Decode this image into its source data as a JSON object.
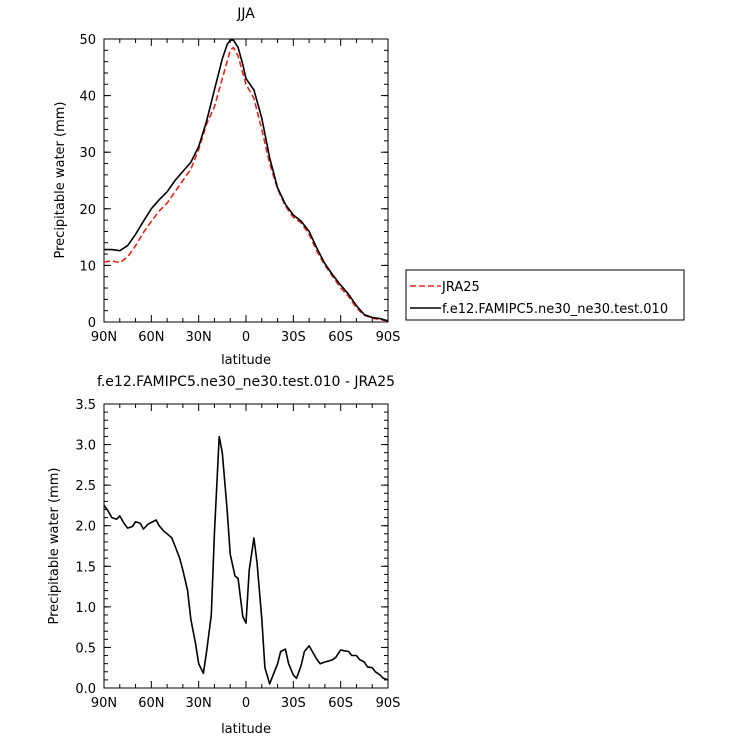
{
  "chart_data": [
    {
      "type": "line",
      "title": "JJA",
      "xlabel": "latitude",
      "ylabel": "Precipitable water (mm)",
      "xlim": [
        90,
        -90
      ],
      "ylim": [
        0,
        50
      ],
      "x_ticks": [
        90,
        60,
        30,
        0,
        -30,
        -60,
        -90
      ],
      "x_tick_labels": [
        "90N",
        "60N",
        "30N",
        "0",
        "30S",
        "60S",
        "90S"
      ],
      "y_ticks": [
        0,
        10,
        20,
        30,
        40,
        50
      ],
      "y_tick_labels": [
        "0",
        "10",
        "20",
        "30",
        "40",
        "50"
      ],
      "grid": false,
      "legend_position": "right",
      "series": [
        {
          "name": "JRA25",
          "color": "#e8241c",
          "dash": "dashed",
          "x": [
            90,
            85,
            80,
            75,
            70,
            65,
            60,
            55,
            50,
            45,
            40,
            35,
            30,
            25,
            20,
            15,
            12,
            10,
            8,
            5,
            2,
            0,
            -5,
            -10,
            -15,
            -20,
            -25,
            -30,
            -35,
            -40,
            -45,
            -50,
            -55,
            -60,
            -65,
            -70,
            -75,
            -80,
            -85,
            -90
          ],
          "y": [
            10.6,
            10.8,
            10.5,
            11.5,
            13.5,
            15.8,
            17.8,
            19.6,
            21.0,
            23.0,
            25.0,
            27.0,
            30.5,
            35.0,
            38.0,
            43.0,
            46.0,
            48.0,
            48.5,
            47.0,
            44.0,
            42.0,
            39.5,
            34.0,
            28.0,
            23.5,
            20.5,
            18.5,
            17.5,
            15.5,
            12.5,
            10.0,
            8.0,
            6.0,
            4.5,
            2.5,
            1.2,
            0.7,
            0.4,
            0.2
          ]
        },
        {
          "name": "f.e12.FAMIPC5.ne30_ne30.test.010",
          "color": "#000000",
          "dash": "solid",
          "x": [
            90,
            85,
            80,
            75,
            70,
            65,
            60,
            55,
            50,
            45,
            40,
            35,
            30,
            25,
            20,
            15,
            12,
            10,
            8,
            5,
            2,
            0,
            -5,
            -10,
            -15,
            -20,
            -25,
            -30,
            -35,
            -40,
            -45,
            -50,
            -55,
            -60,
            -65,
            -70,
            -75,
            -80,
            -85,
            -90
          ],
          "y": [
            12.8,
            12.8,
            12.6,
            13.5,
            15.5,
            17.8,
            20.0,
            21.6,
            23.0,
            25.0,
            26.6,
            28.2,
            31.0,
            35.5,
            41.0,
            46.5,
            49.0,
            49.8,
            49.8,
            48.5,
            45.5,
            43.0,
            41.0,
            36.0,
            29.0,
            23.7,
            20.8,
            18.9,
            17.8,
            16.0,
            13.0,
            10.3,
            8.3,
            6.5,
            4.9,
            2.9,
            1.3,
            0.8,
            0.6,
            0.2
          ]
        }
      ]
    },
    {
      "type": "line",
      "title": "f.e12.FAMIPC5.ne30_ne30.test.010 - JRA25",
      "xlabel": "latitude",
      "ylabel": "Precipitable water (mm)",
      "xlim": [
        90,
        -90
      ],
      "ylim": [
        0,
        3.5
      ],
      "x_ticks": [
        90,
        60,
        30,
        0,
        -30,
        -60,
        -90
      ],
      "x_tick_labels": [
        "90N",
        "60N",
        "30N",
        "0",
        "30S",
        "60S",
        "90S"
      ],
      "y_ticks": [
        0,
        0.5,
        1.0,
        1.5,
        2.0,
        2.5,
        3.0,
        3.5
      ],
      "y_tick_labels": [
        "0.0",
        "0.5",
        "1.0",
        "1.5",
        "2.0",
        "2.5",
        "3.0",
        "3.5"
      ],
      "grid": false,
      "series": [
        {
          "color": "#000000",
          "dash": "solid",
          "x": [
            90,
            88,
            85,
            82,
            80,
            77,
            75,
            72,
            70,
            67,
            65,
            62,
            60,
            57,
            55,
            52,
            50,
            47,
            45,
            42,
            40,
            37,
            35,
            32,
            30,
            27,
            25,
            22,
            20,
            17,
            15,
            12,
            10,
            7,
            5,
            2,
            0,
            -2,
            -5,
            -7,
            -10,
            -12,
            -15,
            -17,
            -20,
            -22,
            -25,
            -27,
            -30,
            -32,
            -35,
            -37,
            -40,
            -42,
            -45,
            -47,
            -50,
            -52,
            -55,
            -57,
            -60,
            -62,
            -65,
            -67,
            -70,
            -72,
            -75,
            -77,
            -80,
            -82,
            -85,
            -87,
            -90
          ],
          "y": [
            2.25,
            2.2,
            2.1,
            2.08,
            2.12,
            2.02,
            1.97,
            1.99,
            2.05,
            2.03,
            1.96,
            2.02,
            2.04,
            2.07,
            2.0,
            1.93,
            1.9,
            1.85,
            1.75,
            1.6,
            1.45,
            1.2,
            0.85,
            0.55,
            0.3,
            0.18,
            0.45,
            0.9,
            1.9,
            3.1,
            2.9,
            2.2,
            1.65,
            1.38,
            1.35,
            0.88,
            0.8,
            1.45,
            1.85,
            1.55,
            0.85,
            0.25,
            0.05,
            0.15,
            0.3,
            0.45,
            0.48,
            0.3,
            0.16,
            0.12,
            0.28,
            0.45,
            0.52,
            0.45,
            0.35,
            0.3,
            0.32,
            0.33,
            0.35,
            0.38,
            0.47,
            0.46,
            0.45,
            0.4,
            0.4,
            0.35,
            0.32,
            0.26,
            0.25,
            0.2,
            0.16,
            0.12,
            0.1
          ]
        }
      ]
    }
  ]
}
